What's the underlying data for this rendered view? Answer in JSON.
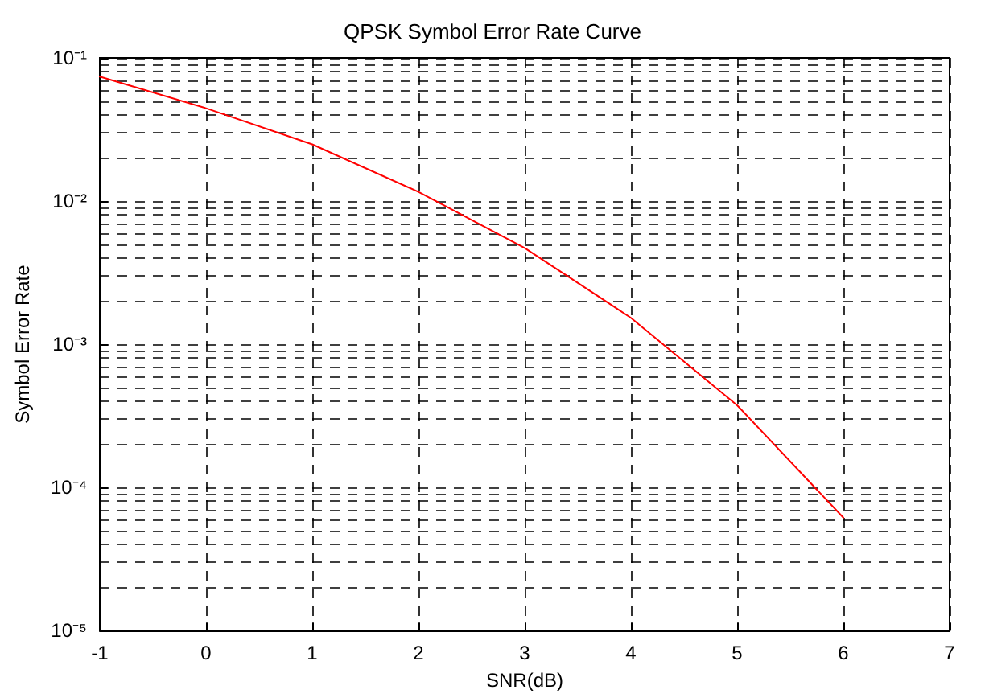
{
  "chart_data": {
    "type": "line",
    "title": "QPSK Symbol Error Rate Curve",
    "xlabel": "SNR(dB)",
    "ylabel": "Symbol Error Rate",
    "x": [
      -1,
      0,
      1,
      2,
      3,
      4,
      5,
      6
    ],
    "series": [
      {
        "color": "#ff0000",
        "values": [
          0.074,
          0.0445,
          0.0249,
          0.0116,
          0.0047,
          0.00153,
          0.000375,
          6.15e-05
        ]
      }
    ],
    "xlim": [
      -1,
      7
    ],
    "xticks": [
      -1,
      0,
      1,
      2,
      3,
      4,
      5,
      6,
      7
    ],
    "ylim": [
      1e-05,
      0.1
    ],
    "yticks": [
      {
        "value": 1e-05,
        "label": "10⁻⁵"
      },
      {
        "value": 0.0001,
        "label": "10⁻⁴"
      },
      {
        "value": 0.001,
        "label": "10⁻³"
      },
      {
        "value": 0.01,
        "label": "10⁻²"
      },
      {
        "value": 0.1,
        "label": "10⁻¹"
      }
    ],
    "log": "y",
    "grid": true,
    "marker": "none",
    "line_style": "solid"
  }
}
